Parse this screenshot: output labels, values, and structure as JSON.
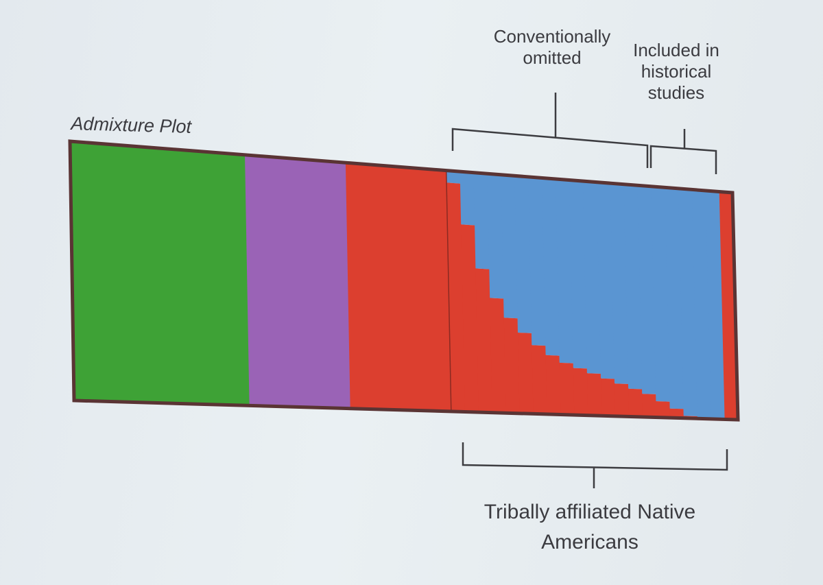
{
  "slide": {
    "title": "Admixture Plot"
  },
  "annotations": {
    "conventionally_omitted": "Conventionally omitted",
    "included_historical": "Included in historical studies",
    "tribally_affiliated": "Tribally affiliated Native Americans"
  },
  "colors": {
    "green": "#3ea236",
    "purple": "#9a63b6",
    "red": "#dc3f2f",
    "blue": "#5a95d2",
    "frame": "#5a3434",
    "bracket": "#3c3c40"
  },
  "chart_data": {
    "type": "stacked-bar",
    "title": "Admixture Plot",
    "y_range": [
      0,
      1
    ],
    "groups": [
      {
        "component": "green",
        "share_of_samples": 0.264,
        "ancestry": {
          "green": 1.0
        }
      },
      {
        "component": "purple",
        "share_of_samples": 0.152,
        "ancestry": {
          "purple": 1.0
        }
      },
      {
        "component": "red",
        "share_of_samples": 0.152,
        "ancestry": {
          "red": 1.0
        }
      },
      {
        "component": "admixed",
        "share_of_samples": 0.412,
        "ancestry_profile": "blue fraction rising from about 0.05 to 1.0 left to right, remainder red"
      },
      {
        "component": "red",
        "share_of_samples": 0.02,
        "ancestry": {
          "red": 1.0
        }
      }
    ],
    "admixed_blue_fraction": [
      0.05,
      0.22,
      0.4,
      0.52,
      0.6,
      0.66,
      0.71,
      0.75,
      0.78,
      0.8,
      0.82,
      0.84,
      0.86,
      0.88,
      0.9,
      0.93,
      0.96,
      0.99,
      1.0,
      1.0
    ],
    "brackets": [
      {
        "label": "Conventionally omitted",
        "position": "top",
        "span": "admixed samples, left part"
      },
      {
        "label": "Included in historical studies",
        "position": "top",
        "span": "admixed samples, rightmost part"
      },
      {
        "label": "Tribally affiliated Native Americans",
        "position": "bottom",
        "span": "admixed samples"
      }
    ]
  }
}
